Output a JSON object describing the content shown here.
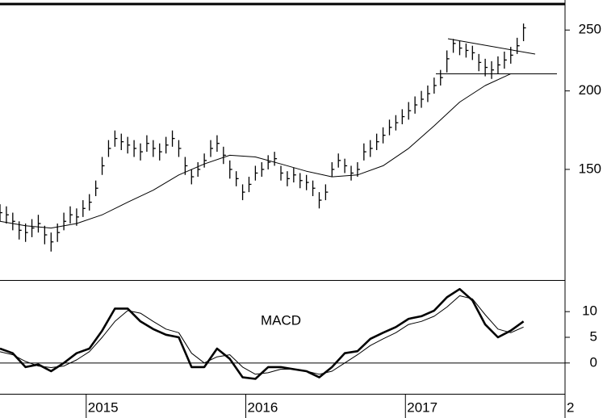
{
  "chart_data": [
    {
      "type": "ohlc",
      "log_scale": true,
      "color": "#000000",
      "xlim": [
        2014.46,
        2018
      ],
      "ylim": [
        100,
        275
      ],
      "yticks": [
        150,
        200,
        250
      ],
      "x": [
        2014.46,
        2014.5,
        2014.54,
        2014.58,
        2014.62,
        2014.66,
        2014.7,
        2014.74,
        2014.78,
        2014.82,
        2014.86,
        2014.9,
        2014.94,
        2014.98,
        2015.02,
        2015.06,
        2015.1,
        2015.14,
        2015.18,
        2015.22,
        2015.26,
        2015.3,
        2015.34,
        2015.38,
        2015.42,
        2015.46,
        2015.5,
        2015.54,
        2015.58,
        2015.62,
        2015.66,
        2015.7,
        2015.74,
        2015.78,
        2015.82,
        2015.86,
        2015.9,
        2015.94,
        2015.98,
        2016.02,
        2016.06,
        2016.1,
        2016.14,
        2016.18,
        2016.22,
        2016.26,
        2016.3,
        2016.34,
        2016.38,
        2016.42,
        2016.46,
        2016.5,
        2016.54,
        2016.58,
        2016.62,
        2016.66,
        2016.7,
        2016.74,
        2016.78,
        2016.82,
        2016.86,
        2016.9,
        2016.94,
        2016.98,
        2017.02,
        2017.06,
        2017.1,
        2017.14,
        2017.18,
        2017.22,
        2017.26,
        2017.3,
        2017.34,
        2017.38,
        2017.42,
        2017.46,
        2017.5,
        2017.54,
        2017.58,
        2017.62,
        2017.66,
        2017.7,
        2017.74
      ],
      "high": [
        132,
        131,
        128,
        124,
        123,
        125,
        127,
        122,
        119,
        123,
        128,
        131,
        130,
        134,
        137,
        144,
        157,
        167,
        173,
        171,
        169,
        167,
        165,
        170,
        167,
        165,
        169,
        173,
        167,
        157,
        150,
        154,
        159,
        167,
        170,
        163,
        155,
        149,
        142,
        146,
        152,
        154,
        158,
        160,
        152,
        149,
        151,
        148,
        147,
        144,
        138,
        142,
        154,
        159,
        156,
        152,
        154,
        165,
        167,
        171,
        175,
        180,
        183,
        187,
        192,
        196,
        200,
        204,
        210,
        216,
        232,
        242,
        240,
        238,
        236,
        229,
        225,
        223,
        227,
        231,
        235,
        243,
        256
      ],
      "low": [
        124,
        123,
        120,
        116,
        115,
        117,
        119,
        114,
        111,
        115,
        120,
        123,
        122,
        126,
        129,
        136,
        147,
        157,
        163,
        161,
        159,
        157,
        155,
        160,
        157,
        155,
        159,
        163,
        157,
        147,
        142,
        146,
        151,
        157,
        160,
        153,
        145,
        141,
        134,
        138,
        144,
        146,
        150,
        152,
        144,
        141,
        143,
        140,
        139,
        136,
        130,
        134,
        146,
        151,
        148,
        144,
        146,
        155,
        157,
        161,
        165,
        170,
        173,
        177,
        180,
        184,
        188,
        192,
        198,
        204,
        214,
        230,
        228,
        226,
        224,
        215,
        211,
        209,
        213,
        217,
        221,
        229,
        240
      ],
      "close": [
        128,
        127,
        124,
        120,
        119,
        121,
        123,
        118,
        115,
        119,
        124,
        127,
        126,
        130,
        133,
        140,
        152,
        162,
        168,
        166,
        164,
        162,
        160,
        165,
        162,
        160,
        164,
        168,
        162,
        152,
        146,
        150,
        155,
        162,
        165,
        158,
        150,
        145,
        138,
        142,
        148,
        150,
        154,
        156,
        148,
        145,
        147,
        144,
        143,
        140,
        134,
        138,
        150,
        155,
        152,
        148,
        150,
        160,
        162,
        166,
        170,
        175,
        178,
        182,
        186,
        190,
        194,
        198,
        204,
        210,
        225,
        238,
        234,
        232,
        230,
        222,
        218,
        216,
        220,
        224,
        228,
        236,
        252
      ],
      "moving_average": {
        "color": "#000000",
        "x": [
          2014.46,
          2014.62,
          2014.78,
          2014.94,
          2015.1,
          2015.26,
          2015.42,
          2015.58,
          2015.74,
          2015.9,
          2016.06,
          2016.22,
          2016.38,
          2016.54,
          2016.7,
          2016.86,
          2017.02,
          2017.18,
          2017.34,
          2017.5,
          2017.66
        ],
        "values": [
          124,
          122,
          121,
          123,
          127,
          133,
          139,
          147,
          153,
          158,
          157,
          153,
          149,
          146,
          147,
          152,
          162,
          176,
          192,
          204,
          213
        ]
      }
    },
    {
      "type": "line",
      "annotation": "MACD",
      "xlim": [
        2014.46,
        2018
      ],
      "xticks": [
        2015,
        2016,
        2017,
        {
          "value": 2018,
          "label": "2"
        }
      ],
      "ylim": [
        -6,
        16
      ],
      "yticks": [
        0,
        5,
        10
      ],
      "zero_line": true,
      "x": [
        2014.46,
        2014.54,
        2014.62,
        2014.7,
        2014.78,
        2014.86,
        2014.94,
        2015.02,
        2015.1,
        2015.18,
        2015.26,
        2015.34,
        2015.42,
        2015.5,
        2015.58,
        2015.66,
        2015.74,
        2015.82,
        2015.9,
        2015.98,
        2016.06,
        2016.14,
        2016.22,
        2016.3,
        2016.38,
        2016.46,
        2016.54,
        2016.62,
        2016.7,
        2016.78,
        2016.86,
        2016.94,
        2017.02,
        2017.1,
        2017.18,
        2017.26,
        2017.34,
        2017.42,
        2017.5,
        2017.58,
        2017.66,
        2017.74
      ],
      "series": [
        {
          "color": "#000000",
          "line_width": 2.6,
          "values": [
            2.8,
            1.9,
            -0.8,
            -0.3,
            -1.6,
            0,
            1.9,
            2.8,
            6.3,
            10.6,
            10.6,
            8.1,
            6.6,
            5.5,
            5,
            -0.8,
            -0.8,
            2.8,
            0.8,
            -2.8,
            -3.1,
            -0.8,
            -0.8,
            -1.2,
            -1.6,
            -2.8,
            -0.8,
            1.9,
            2.3,
            4.7,
            5.9,
            7,
            8.6,
            9.1,
            10.2,
            12.8,
            14.4,
            12.2,
            7.5,
            5,
            6.3,
            8.1
          ]
        },
        {
          "color": "#000000",
          "line_width": 1,
          "values": [
            2.2,
            1.6,
            0.3,
            -0.6,
            -0.9,
            -0.6,
            0.6,
            2.2,
            5,
            8.1,
            10.2,
            9.7,
            8.1,
            6.6,
            5.9,
            1.9,
            0,
            1.2,
            1.6,
            -0.8,
            -2.2,
            -1.9,
            -1.2,
            -1.2,
            -1.6,
            -2.2,
            -1.6,
            0,
            1.6,
            3.4,
            4.7,
            5.9,
            7.5,
            8.1,
            9.1,
            10.9,
            13.1,
            12.5,
            9.4,
            6.6,
            5.9,
            7
          ]
        }
      ]
    }
  ]
}
